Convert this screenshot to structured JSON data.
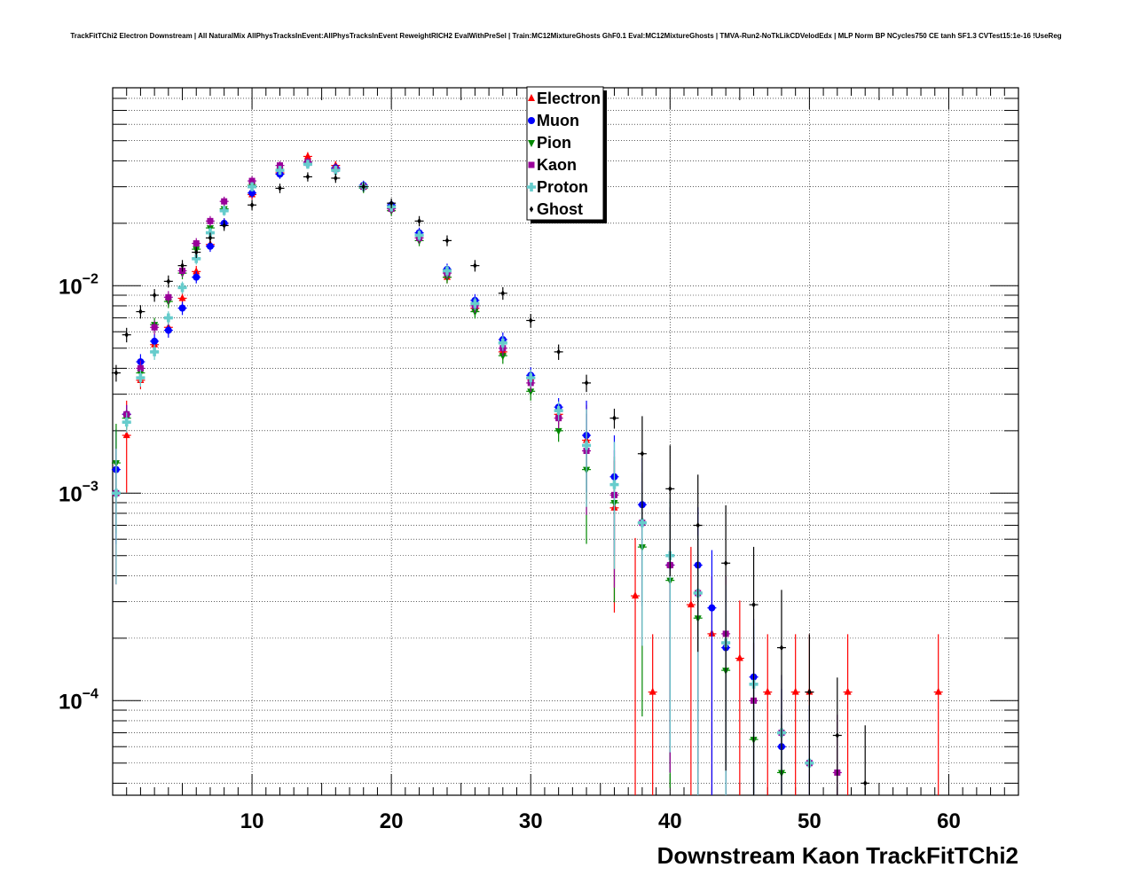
{
  "chart_data": {
    "type": "scatter",
    "title": "TrackFitTChi2 Electron Downstream | All NaturalMix AllPhysTracksInEvent:AllPhysTracksInEvent ReweightRICH2 EvalWithPreSel | Train:MC12MixtureGhosts GhF0.1 Eval:MC12MixtureGhosts | TMVA-Run2-NoTkLikCDVelodEdx | MLP Norm BP NCycles750 CE tanh SF1.3 CVTest15:1e-16 !UseReg",
    "xlabel": "Downstream Kaon TrackFitTChi2",
    "ylabel": "",
    "xlim": [
      0,
      65
    ],
    "ylim": [
      3.5e-05,
      0.09
    ],
    "yscale": "log",
    "grid": true,
    "legend_position": "top-center",
    "x_ticks": [
      10,
      20,
      30,
      40,
      50,
      60
    ],
    "x_tick_labels": [
      "10",
      "20",
      "30",
      "40",
      "50",
      "60"
    ],
    "y_ticks": [
      0.0001,
      0.001,
      0.01
    ],
    "y_tick_labels": [
      {
        "base": "10",
        "exp": "−4"
      },
      {
        "base": "10",
        "exp": "−3"
      },
      {
        "base": "10",
        "exp": "−2"
      }
    ],
    "series": [
      {
        "name": "Electron",
        "color": "#ff0000",
        "marker": "triangle-up",
        "x": [
          0.25,
          1,
          2,
          3,
          4,
          5,
          6,
          7,
          8,
          10,
          12,
          14,
          16,
          18,
          20,
          22,
          24,
          26,
          28,
          30,
          32,
          34,
          36,
          37.5,
          38.75,
          40,
          41.5,
          43,
          45,
          47,
          49,
          50,
          52.75,
          59.25
        ],
        "y": [
          0.001,
          0.0019,
          0.0035,
          0.0052,
          0.0063,
          0.0087,
          0.0117,
          0.0158,
          0.02,
          0.0275,
          0.035,
          0.042,
          0.038,
          0.03,
          0.0235,
          0.0175,
          0.011,
          0.0078,
          0.0048,
          0.0036,
          0.0024,
          0.0018,
          0.00085,
          0.00032,
          0.00011,
          0.00045,
          0.00029,
          0.00021,
          0.00016,
          0.00011,
          0.00011,
          0.00011,
          0.00011,
          0.00011
        ]
      },
      {
        "name": "Muon",
        "color": "#0000ff",
        "marker": "circle",
        "x": [
          0.25,
          1,
          2,
          3,
          4,
          5,
          6,
          7,
          8,
          10,
          12,
          14,
          16,
          18,
          20,
          22,
          24,
          26,
          28,
          30,
          32,
          34,
          36,
          38,
          40,
          42,
          43,
          44,
          46,
          48,
          50
        ],
        "y": [
          0.0013,
          0.0024,
          0.0043,
          0.0054,
          0.0061,
          0.0078,
          0.011,
          0.0155,
          0.02,
          0.028,
          0.0345,
          0.039,
          0.037,
          0.0305,
          0.0245,
          0.018,
          0.012,
          0.0085,
          0.0055,
          0.0037,
          0.0026,
          0.0019,
          0.0012,
          0.00088,
          0.00045,
          0.00045,
          0.00028,
          0.00018,
          0.00013,
          6e-05,
          5e-05
        ]
      },
      {
        "name": "Pion",
        "color": "#008800",
        "marker": "triangle-down",
        "x": [
          0.25,
          1,
          2,
          3,
          4,
          5,
          6,
          7,
          8,
          10,
          12,
          14,
          16,
          18,
          20,
          22,
          24,
          26,
          28,
          30,
          32,
          34,
          36,
          38,
          40,
          42,
          44,
          46,
          48
        ],
        "y": [
          0.0014,
          0.0023,
          0.0038,
          0.0065,
          0.0084,
          0.0115,
          0.015,
          0.019,
          0.0235,
          0.0305,
          0.036,
          0.039,
          0.0365,
          0.0295,
          0.023,
          0.0165,
          0.011,
          0.0075,
          0.0046,
          0.0031,
          0.002,
          0.0013,
          0.0009,
          0.00055,
          0.00038,
          0.00025,
          0.00014,
          6.5e-05,
          4.5e-05
        ]
      },
      {
        "name": "Kaon",
        "color": "#990099",
        "marker": "square",
        "x": [
          0.25,
          1,
          2,
          3,
          4,
          5,
          6,
          7,
          8,
          10,
          12,
          14,
          16,
          18,
          20,
          22,
          24,
          26,
          28,
          30,
          32,
          34,
          36,
          38,
          40,
          42,
          44,
          46,
          48,
          50,
          52
        ],
        "y": [
          0.001,
          0.0024,
          0.004,
          0.0063,
          0.0088,
          0.0118,
          0.016,
          0.0205,
          0.0255,
          0.032,
          0.038,
          0.0395,
          0.0365,
          0.03,
          0.0235,
          0.017,
          0.0115,
          0.008,
          0.005,
          0.0034,
          0.0023,
          0.0016,
          0.00098,
          0.00072,
          0.00045,
          0.00033,
          0.00021,
          0.0001,
          7e-05,
          5e-05,
          4.5e-05
        ]
      },
      {
        "name": "Proton",
        "color": "#66cccc",
        "marker": "cross",
        "x": [
          0.25,
          1,
          2,
          3,
          4,
          5,
          6,
          7,
          8,
          10,
          12,
          14,
          16,
          18,
          20,
          22,
          24,
          26,
          28,
          30,
          32,
          34,
          36,
          38,
          40,
          42,
          44,
          46,
          48,
          50
        ],
        "y": [
          0.001,
          0.0022,
          0.0036,
          0.0048,
          0.007,
          0.0098,
          0.0135,
          0.018,
          0.023,
          0.03,
          0.036,
          0.0385,
          0.036,
          0.03,
          0.024,
          0.0175,
          0.0118,
          0.0082,
          0.0053,
          0.0036,
          0.0025,
          0.0017,
          0.0011,
          0.00072,
          0.0005,
          0.00033,
          0.00019,
          0.00012,
          7e-05,
          5e-05
        ]
      },
      {
        "name": "Ghost",
        "color": "#000000",
        "marker": "diamond",
        "x": [
          0.25,
          1,
          2,
          3,
          4,
          5,
          6,
          7,
          8,
          10,
          12,
          14,
          16,
          18,
          20,
          22,
          24,
          26,
          28,
          30,
          32,
          34,
          36,
          38,
          40,
          42,
          44,
          46,
          48,
          50,
          52,
          54
        ],
        "y": [
          0.0038,
          0.0058,
          0.0075,
          0.009,
          0.0105,
          0.0125,
          0.0145,
          0.017,
          0.0195,
          0.0245,
          0.0295,
          0.0335,
          0.033,
          0.03,
          0.025,
          0.0205,
          0.0165,
          0.0125,
          0.0092,
          0.0068,
          0.0048,
          0.0034,
          0.0023,
          0.00155,
          0.00105,
          0.0007,
          0.00046,
          0.00029,
          0.00018,
          0.00011,
          6.8e-05,
          4e-05
        ]
      }
    ]
  }
}
